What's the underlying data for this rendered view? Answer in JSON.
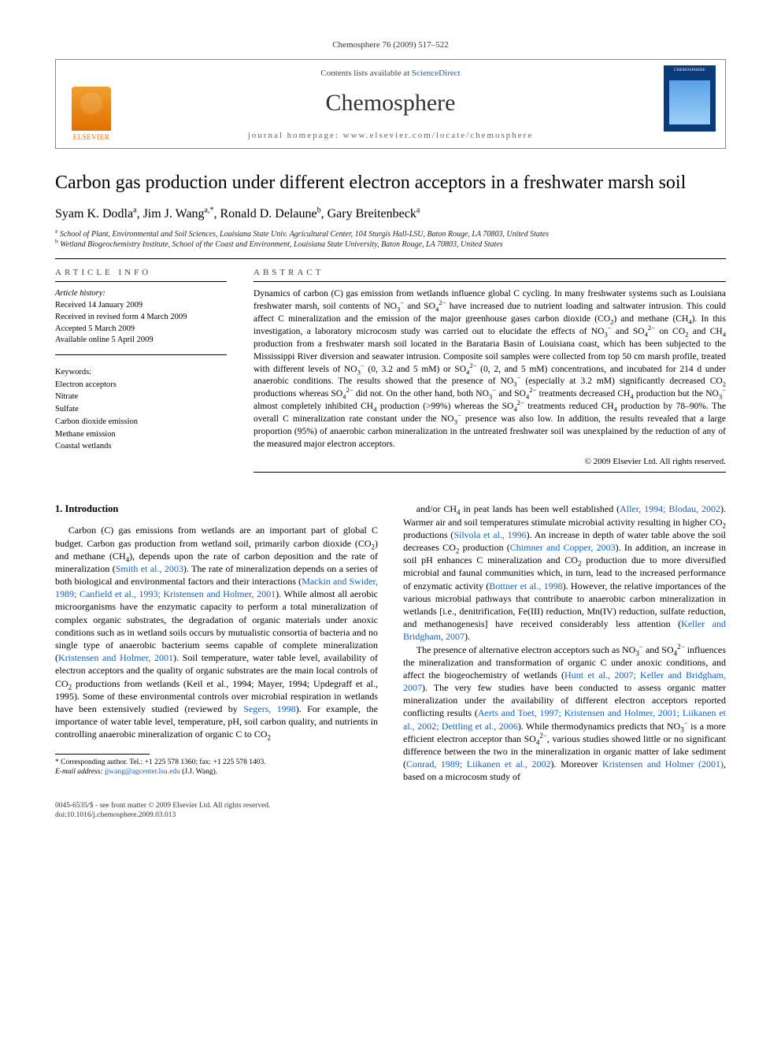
{
  "citation": "Chemosphere 76 (2009) 517–522",
  "header": {
    "contents_prefix": "Contents lists available at ",
    "contents_link": "ScienceDirect",
    "journal": "Chemosphere",
    "homepage_label": "journal homepage: www.elsevier.com/locate/chemosphere",
    "publisher": "ELSEVIER"
  },
  "title": "Carbon gas production under different electron acceptors in a freshwater marsh soil",
  "authors": [
    {
      "name": "Syam K. Dodla",
      "aff_marks": "a"
    },
    {
      "name": "Jim J. Wang",
      "aff_marks": "a,*"
    },
    {
      "name": "Ronald D. Delaune",
      "aff_marks": "b"
    },
    {
      "name": "Gary Breitenbeck",
      "aff_marks": "a"
    }
  ],
  "affiliations": [
    {
      "mark": "a",
      "text": "School of Plant, Environmental and Soil Sciences, Louisiana State Univ. Agricultural Center, 104 Sturgis Hall-LSU, Baton Rouge, LA 70803, United States"
    },
    {
      "mark": "b",
      "text": "Wetland Biogeochemistry Institute, School of the Coast and Environment, Louisiana State University, Baton Rouge, LA 70803, United States"
    }
  ],
  "article_info": {
    "label": "ARTICLE INFO",
    "history_label": "Article history:",
    "history": [
      "Received 14 January 2009",
      "Received in revised form 4 March 2009",
      "Accepted 5 March 2009",
      "Available online 5 April 2009"
    ],
    "keywords_label": "Keywords:",
    "keywords": [
      "Electron acceptors",
      "Nitrate",
      "Sulfate",
      "Carbon dioxide emission",
      "Methane emission",
      "Coastal wetlands"
    ]
  },
  "abstract": {
    "label": "ABSTRACT",
    "text_html": "Dynamics of carbon (C) gas emission from wetlands influence global C cycling. In many freshwater systems such as Louisiana freshwater marsh, soil contents of NO<sub>3</sub><sup>−</sup> and SO<sub>4</sub><sup>2−</sup> have increased due to nutrient loading and saltwater intrusion. This could affect C mineralization and the emission of the major greenhouse gases carbon dioxide (CO<sub>2</sub>) and methane (CH<sub>4</sub>). In this investigation, a laboratory microcosm study was carried out to elucidate the effects of NO<sub>3</sub><sup>−</sup> and SO<sub>4</sub><sup>2−</sup> on CO<sub>2</sub> and CH<sub>4</sub> production from a freshwater marsh soil located in the Barataria Basin of Louisiana coast, which has been subjected to the Mississippi River diversion and seawater intrusion. Composite soil samples were collected from top 50 cm marsh profile, treated with different levels of NO<sub>3</sub><sup>−</sup> (0, 3.2 and 5 mM) or SO<sub>4</sub><sup>2−</sup> (0, 2, and 5 mM) concentrations, and incubated for 214 d under anaerobic conditions. The results showed that the presence of NO<sub>3</sub><sup>−</sup> (especially at 3.2 mM) significantly decreased CO<sub>2</sub> productions whereas SO<sub>4</sub><sup>2−</sup> did not. On the other hand, both NO<sub>3</sub><sup>−</sup> and SO<sub>4</sub><sup>2−</sup> treatments decreased CH<sub>4</sub> production but the NO<sub>3</sub><sup>−</sup> almost completely inhibited CH<sub>4</sub> production (>99%) whereas the SO<sub>4</sub><sup>2−</sup> treatments reduced CH<sub>4</sub> production by 78–90%. The overall C mineralization rate constant under the NO<sub>3</sub><sup>−</sup> presence was also low. In addition, the results revealed that a large proportion (95%) of anaerobic carbon mineralization in the untreated freshwater soil was unexplained by the reduction of any of the measured major electron acceptors.",
    "copyright": "© 2009 Elsevier Ltd. All rights reserved."
  },
  "intro": {
    "heading": "1. Introduction",
    "p1_html": "Carbon (C) gas emissions from wetlands are an important part of global C budget. Carbon gas production from wetland soil, primarily carbon dioxide (CO<sub>2</sub>) and methane (CH<sub>4</sub>), depends upon the rate of carbon deposition and the rate of mineralization (<a class='ref' href='#'>Smith et al., 2003</a>). The rate of mineralization depends on a series of both biological and environmental factors and their interactions (<a class='ref' href='#'>Mackin and Swider, 1989; Canfield et al., 1993; Kristensen and Holmer, 2001</a>). While almost all aerobic microorganisms have the enzymatic capacity to perform a total mineralization of complex organic substrates, the degradation of organic materials under anoxic conditions such as in wetland soils occurs by mutualistic consortia of bacteria and no single type of anaerobic bacterium seems capable of complete mineralization (<a class='ref' href='#'>Kristensen and Holmer, 2001</a>). Soil temperature, water table level, availability of electron acceptors and the quality of organic substrates are the main local controls of CO<sub>2</sub> productions from wetlands (Keil et al., 1994; Mayer, 1994; Updegraff et al., 1995). Some of these environmental controls over microbial respiration in wetlands have been extensively studied (reviewed by <a class='ref' href='#'>Segers, 1998</a>). For example, the importance of water table level, temperature, pH, soil carbon quality, and nutrients in controlling anaerobic mineralization of organic C to CO<sub>2</sub>",
    "p2_html": "and/or CH<sub>4</sub> in peat lands has been well established (<a class='ref' href='#'>Aller, 1994; Blodau, 2002</a>). Warmer air and soil temperatures stimulate microbial activity resulting in higher CO<sub>2</sub> productions (<a class='ref' href='#'>Silvola et al., 1996</a>). An increase in depth of water table above the soil decreases CO<sub>2</sub> production (<a class='ref' href='#'>Chimner and Copper, 2003</a>). In addition, an increase in soil pH enhances C mineralization and CO<sub>2</sub> production due to more diversified microbial and faunal communities which, in turn, lead to the increased performance of enzymatic activity (<a class='ref' href='#'>Bottner et al., 1998</a>). However, the relative importances of the various microbial pathways that contribute to anaerobic carbon mineralization in wetlands [i.e., denitrification, Fe(III) reduction, Mn(IV) reduction, sulfate reduction, and methanogenesis] have received considerably less attention (<a class='ref' href='#'>Keller and Bridgham, 2007</a>).",
    "p3_html": "The presence of alternative electron acceptors such as NO<sub>3</sub><sup>−</sup> and SO<sub>4</sub><sup>2−</sup> influences the mineralization and transformation of organic C under anoxic conditions, and affect the biogeochemistry of wetlands (<a class='ref' href='#'>Hunt et al., 2007; Keller and Bridgham, 2007</a>). The very few studies have been conducted to assess organic matter mineralization under the availability of different electron acceptors reported conflicting results (<a class='ref' href='#'>Aerts and Toet, 1997; Kristensen and Holmer, 2001; Liikanen et al., 2002; Dettling et al., 2006</a>). While thermodynamics predicts that NO<sub>3</sub><sup>−</sup> is a more efficient electron acceptor than SO<sub>4</sub><sup>2−</sup>, various studies showed little or no significant difference between the two in the mineralization in organic matter of lake sediment (<a class='ref' href='#'>Conrad, 1989; Liikanen et al., 2002</a>). Moreover <a class='ref' href='#'>Kristensen and Holmer (2001)</a>, based on a microcosm study of"
  },
  "footnote": {
    "corr_label": "* Corresponding author. Tel.: +1 225 578 1360; fax: +1 225 578 1403.",
    "email_label": "E-mail address:",
    "email": "jjwang@agcenter.lsu.edu",
    "email_who": "(J.J. Wang)."
  },
  "bottom": {
    "line1": "0045-6535/$ - see front matter © 2009 Elsevier Ltd. All rights reserved.",
    "line2": "doi:10.1016/j.chemosphere.2009.03.013"
  },
  "colors": {
    "link": "#1060c0",
    "elsevier_orange": "#e07000",
    "cover_blue": "#0a3a7a"
  }
}
